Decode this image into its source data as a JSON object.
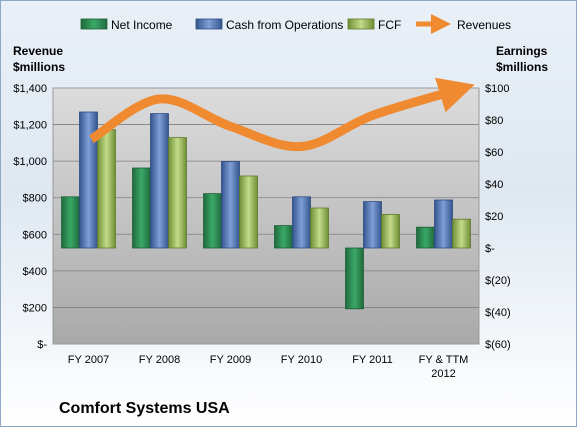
{
  "chart_data": {
    "type": "bar",
    "title": "Comfort Systems USA",
    "categories": [
      "FY 2007",
      "FY 2008",
      "FY 2009",
      "FY 2010",
      "FY 2011",
      "FY & TTM 2012"
    ],
    "left_axis": {
      "label_line1": "Revenue",
      "label_line2": "$millions",
      "ticks": [
        "$-",
        "$200",
        "$400",
        "$600",
        "$800",
        "$1,000",
        "$1,200",
        "$1,400"
      ],
      "ylim": [
        0,
        1400
      ]
    },
    "right_axis": {
      "label_line1": "Earnings",
      "label_line2": "$millions",
      "ticks": [
        "$(60)",
        "$(40)",
        "$(20)",
        "$-",
        "$20",
        "$40",
        "$60",
        "$80",
        "$100"
      ],
      "ylim": [
        -60,
        100
      ]
    },
    "series": [
      {
        "name": "Net Income",
        "axis": "right",
        "type": "bar",
        "color": "#2e8b57",
        "values": [
          32,
          50,
          34,
          14,
          -38,
          13
        ]
      },
      {
        "name": "Cash from Operations",
        "axis": "right",
        "type": "bar",
        "color": "#4f74b3",
        "values": [
          85,
          84,
          54,
          32,
          29,
          30
        ]
      },
      {
        "name": "FCF",
        "axis": "right",
        "type": "bar",
        "color": "#9bbb59",
        "values": [
          74,
          69,
          45,
          25,
          21,
          18
        ]
      },
      {
        "name": "Revenues",
        "axis": "left",
        "type": "line",
        "color": "#f08a30",
        "values": [
          1120,
          1340,
          1190,
          1080,
          1250,
          1390
        ]
      }
    ],
    "grid": true,
    "legend_position": "top"
  }
}
